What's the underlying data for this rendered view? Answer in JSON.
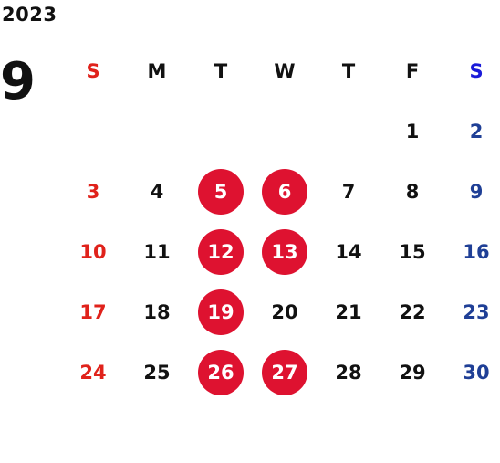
{
  "year": "2023",
  "month": "9",
  "weekdays": [
    "S",
    "M",
    "T",
    "W",
    "T",
    "F",
    "S"
  ],
  "weeks": [
    [
      "",
      "",
      "",
      "",
      "",
      "1",
      "2"
    ],
    [
      "3",
      "4",
      "5",
      "6",
      "7",
      "8",
      "9"
    ],
    [
      "10",
      "11",
      "12",
      "13",
      "14",
      "15",
      "16"
    ],
    [
      "17",
      "18",
      "19",
      "20",
      "21",
      "22",
      "23"
    ],
    [
      "24",
      "25",
      "26",
      "27",
      "28",
      "29",
      "30"
    ]
  ],
  "highlighted_days": [
    "5",
    "6",
    "12",
    "13",
    "19",
    "26",
    "27"
  ],
  "colors": {
    "sunday": "#e0221b",
    "saturday": "#1f3f96",
    "saturday_header": "#1b1bd9",
    "highlight": "#de1230",
    "text": "#111111"
  }
}
